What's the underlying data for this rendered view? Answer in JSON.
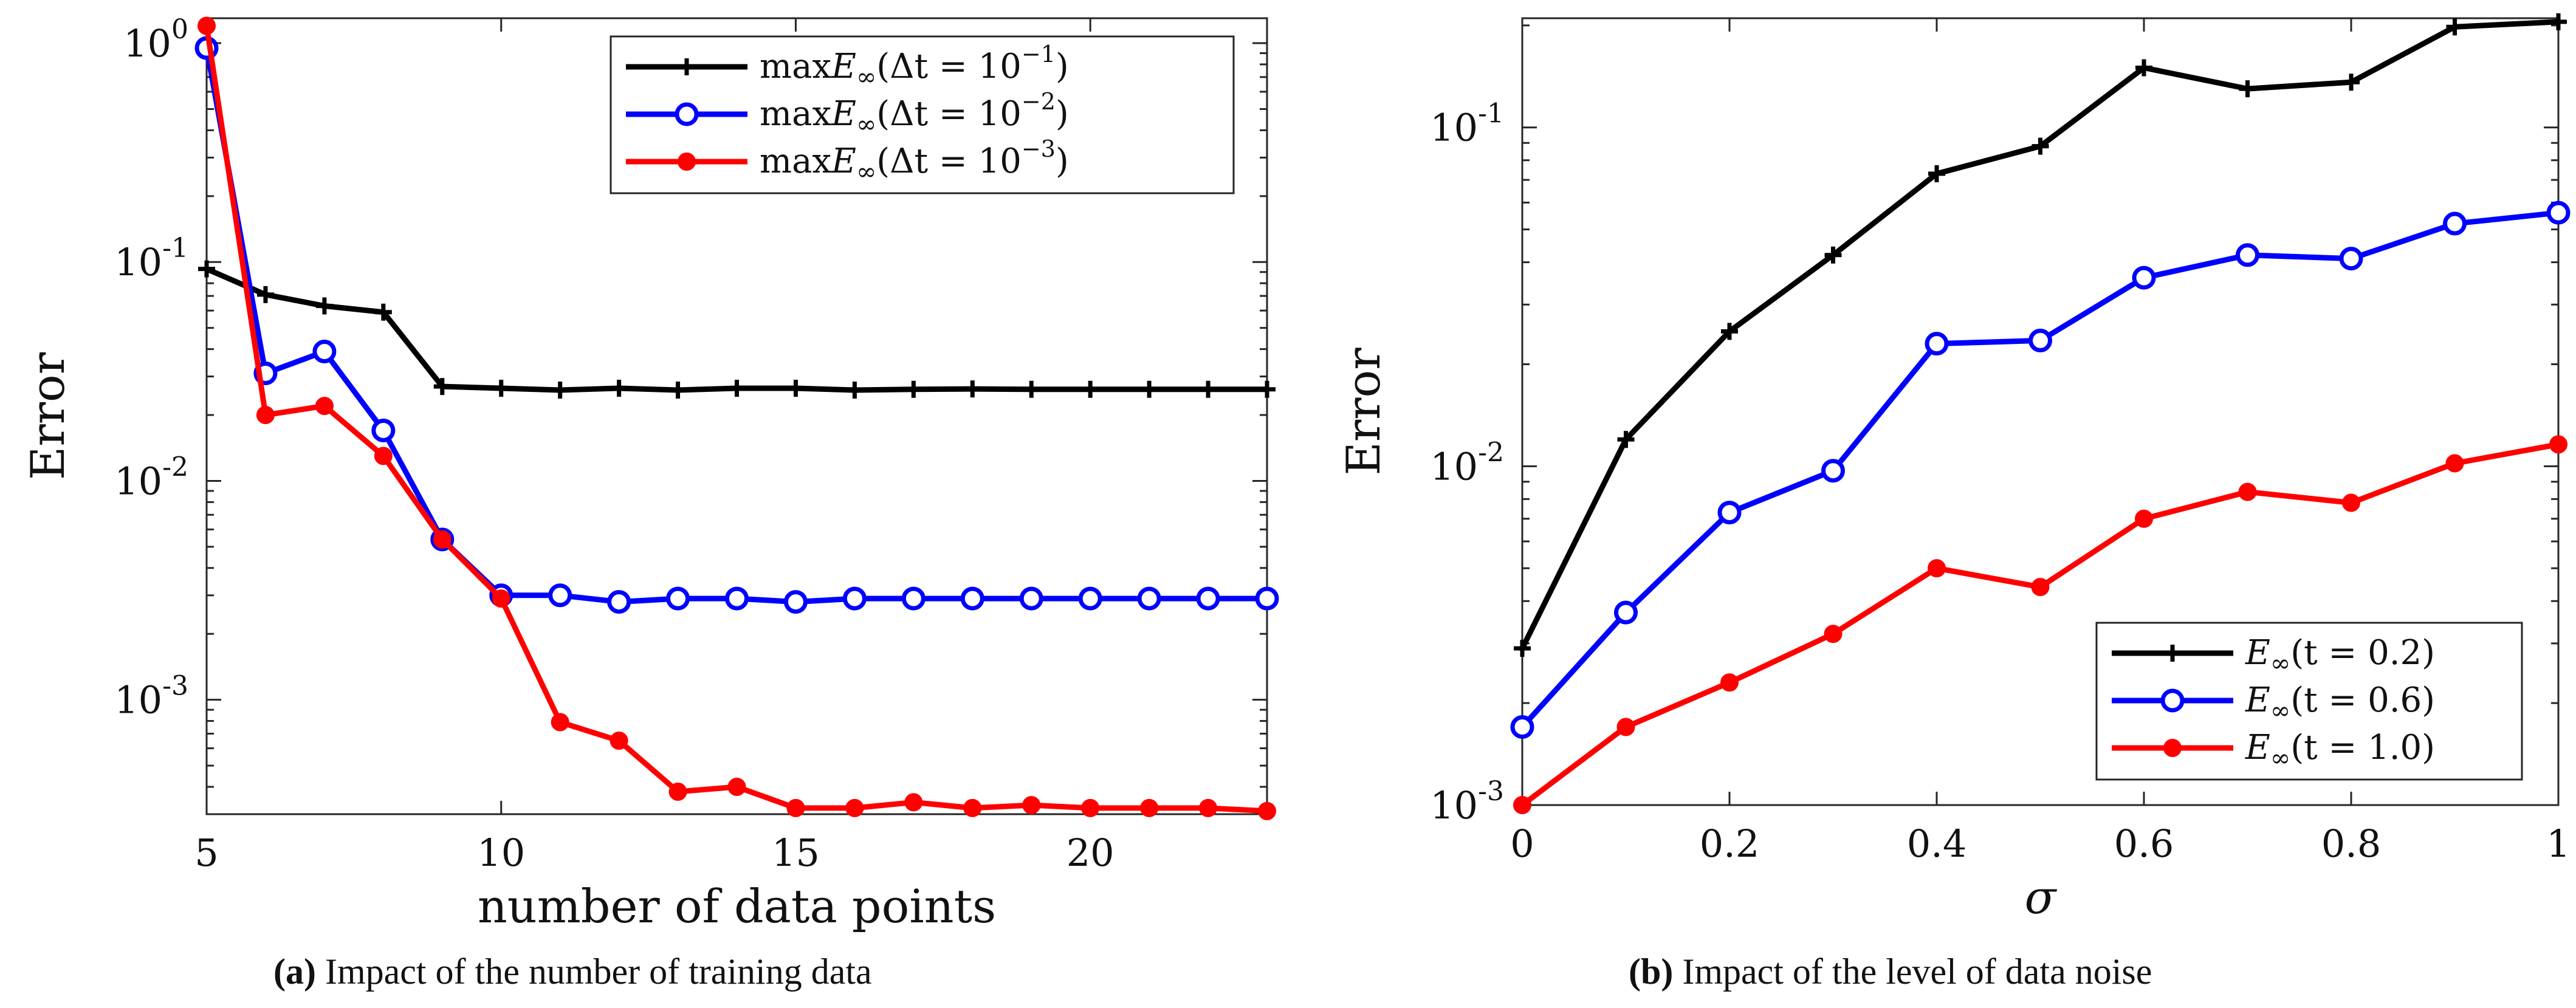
{
  "chart_data": [
    {
      "type": "line",
      "panel": "a",
      "yscale": "log",
      "xlim": [
        5,
        23
      ],
      "ylim": [
        0.0003,
        1.3
      ],
      "xticks": [
        "5",
        "10",
        "15",
        "20"
      ],
      "yticks": [
        {
          "base": "10",
          "exp": "0",
          "value": 1
        },
        {
          "base": "10",
          "exp": "-1",
          "value": 0.1
        },
        {
          "base": "10",
          "exp": "-2",
          "value": 0.01
        },
        {
          "base": "10",
          "exp": "-3",
          "value": 0.001
        }
      ],
      "xlabel": "number of data points",
      "ylabel": "Error",
      "legend_position": "top-right",
      "series": [
        {
          "name": "maxE∞(Δt = 10⁻¹)",
          "prefix": "max",
          "sym": "E",
          "sub": "∞",
          "arg": "(Δt = 10",
          "sup": "−1",
          "close": ")",
          "color": "#000000",
          "marker": "plus",
          "x": [
            5,
            6,
            7,
            8,
            9,
            10,
            11,
            12,
            13,
            14,
            15,
            16,
            17,
            18,
            19,
            20,
            21,
            22,
            23
          ],
          "values": [
            0.093,
            0.071,
            0.063,
            0.059,
            0.027,
            0.0265,
            0.026,
            0.0265,
            0.026,
            0.0265,
            0.0265,
            0.026,
            0.0262,
            0.0263,
            0.0262,
            0.0262,
            0.0262,
            0.0262,
            0.0262
          ]
        },
        {
          "name": "maxE∞(Δt = 10⁻²)",
          "prefix": "max",
          "sym": "E",
          "sub": "∞",
          "arg": "(Δt = 10",
          "sup": "−2",
          "close": ")",
          "color": "#0000ff",
          "marker": "circle",
          "x": [
            5,
            6,
            7,
            8,
            9,
            10,
            11,
            12,
            13,
            14,
            15,
            16,
            17,
            18,
            19,
            20,
            21,
            22,
            23
          ],
          "values": [
            0.95,
            0.031,
            0.039,
            0.017,
            0.0054,
            0.003,
            0.003,
            0.0028,
            0.0029,
            0.0029,
            0.0028,
            0.0029,
            0.0029,
            0.0029,
            0.0029,
            0.0029,
            0.0029,
            0.0029,
            0.0029
          ]
        },
        {
          "name": "maxE∞(Δt = 10⁻³)",
          "prefix": "max",
          "sym": "E",
          "sub": "∞",
          "arg": "(Δt = 10",
          "sup": "−3",
          "close": ")",
          "color": "#ff0000",
          "marker": "dot",
          "x": [
            5,
            6,
            7,
            8,
            9,
            10,
            11,
            12,
            13,
            14,
            15,
            16,
            17,
            18,
            19,
            20,
            21,
            22,
            23
          ],
          "values": [
            1.2,
            0.02,
            0.022,
            0.013,
            0.0054,
            0.0029,
            0.00079,
            0.00065,
            0.00038,
            0.0004,
            0.00032,
            0.00032,
            0.00034,
            0.00032,
            0.00033,
            0.00032,
            0.00032,
            0.00032,
            0.00031
          ]
        }
      ],
      "caption_label": "(a)",
      "caption_text": "Impact of the number of training data"
    },
    {
      "type": "line",
      "panel": "b",
      "yscale": "log",
      "xlim": [
        0,
        1
      ],
      "ylim": [
        0.001,
        0.21
      ],
      "xticks": [
        "0",
        "0.2",
        "0.4",
        "0.6",
        "0.8",
        "1"
      ],
      "yticks": [
        {
          "base": "10",
          "exp": "-1",
          "value": 0.1
        },
        {
          "base": "10",
          "exp": "-2",
          "value": 0.01
        },
        {
          "base": "10",
          "exp": "-3",
          "value": 0.001
        }
      ],
      "xlabel": "σ",
      "ylabel": "Error",
      "legend_position": "bottom-right",
      "series": [
        {
          "name": "E∞(t = 0.2)",
          "prefix": "",
          "sym": "E",
          "sub": "∞",
          "arg": "(t = 0.2)",
          "sup": "",
          "close": "",
          "color": "#000000",
          "marker": "plus",
          "x": [
            0,
            0.1,
            0.2,
            0.3,
            0.4,
            0.5,
            0.6,
            0.7,
            0.8,
            0.9,
            1.0
          ],
          "values": [
            0.0029,
            0.012,
            0.025,
            0.042,
            0.073,
            0.088,
            0.15,
            0.13,
            0.136,
            0.198,
            0.205
          ]
        },
        {
          "name": "E∞(t = 0.6)",
          "prefix": "",
          "sym": "E",
          "sub": "∞",
          "arg": "(t = 0.6)",
          "sup": "",
          "close": "",
          "color": "#0000ff",
          "marker": "circle",
          "x": [
            0,
            0.1,
            0.2,
            0.3,
            0.4,
            0.5,
            0.6,
            0.7,
            0.8,
            0.9,
            1.0
          ],
          "values": [
            0.0017,
            0.0037,
            0.0073,
            0.0097,
            0.023,
            0.0235,
            0.036,
            0.042,
            0.041,
            0.052,
            0.056
          ]
        },
        {
          "name": "E∞(t = 1.0)",
          "prefix": "",
          "sym": "E",
          "sub": "∞",
          "arg": "(t = 1.0)",
          "sup": "",
          "close": "",
          "color": "#ff0000",
          "marker": "dot",
          "x": [
            0,
            0.1,
            0.2,
            0.3,
            0.4,
            0.5,
            0.6,
            0.7,
            0.8,
            0.9,
            1.0
          ],
          "values": [
            0.001,
            0.0017,
            0.0023,
            0.0032,
            0.005,
            0.0044,
            0.007,
            0.0084,
            0.0078,
            0.0102,
            0.0116
          ]
        }
      ],
      "caption_label": "(b)",
      "caption_text": "Impact of the level of data noise"
    }
  ]
}
